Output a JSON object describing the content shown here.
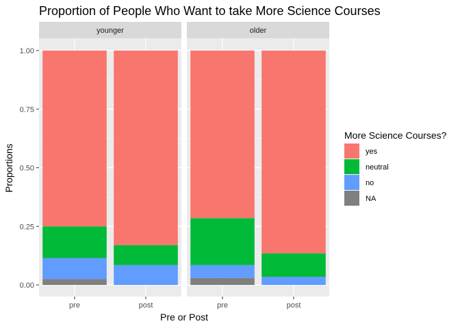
{
  "chart_data": {
    "type": "bar",
    "stacked": true,
    "title": "Proportion of People Who Want to take More Science Courses",
    "xlabel": "Pre or Post",
    "ylabel": "Proportions",
    "ylim": [
      0,
      1
    ],
    "yticks": [
      "0.00",
      "0.25",
      "0.50",
      "0.75",
      "1.00"
    ],
    "categories": [
      "pre",
      "post"
    ],
    "facets": [
      {
        "label": "younger",
        "series": [
          {
            "name": "yes",
            "values": [
              0.75,
              0.83
            ]
          },
          {
            "name": "neutral",
            "values": [
              0.135,
              0.085
            ]
          },
          {
            "name": "no",
            "values": [
              0.09,
              0.085
            ]
          },
          {
            "name": "NA",
            "values": [
              0.025,
              0.0
            ]
          }
        ]
      },
      {
        "label": "older",
        "series": [
          {
            "name": "yes",
            "values": [
              0.715,
              0.865
            ]
          },
          {
            "name": "neutral",
            "values": [
              0.2,
              0.1
            ]
          },
          {
            "name": "no",
            "values": [
              0.055,
              0.035
            ]
          },
          {
            "name": "NA",
            "values": [
              0.03,
              0.0
            ]
          }
        ]
      }
    ],
    "legend": {
      "title": "More Science Courses?",
      "position": "right",
      "entries": [
        {
          "name": "yes",
          "color": "#F8766D"
        },
        {
          "name": "neutral",
          "color": "#00BA38"
        },
        {
          "name": "no",
          "color": "#619CFF"
        },
        {
          "name": "NA",
          "color": "#7F7F7F"
        }
      ]
    },
    "grid": true,
    "panel_background": "#EBEBEB",
    "strip_background": "#D9D9D9"
  }
}
